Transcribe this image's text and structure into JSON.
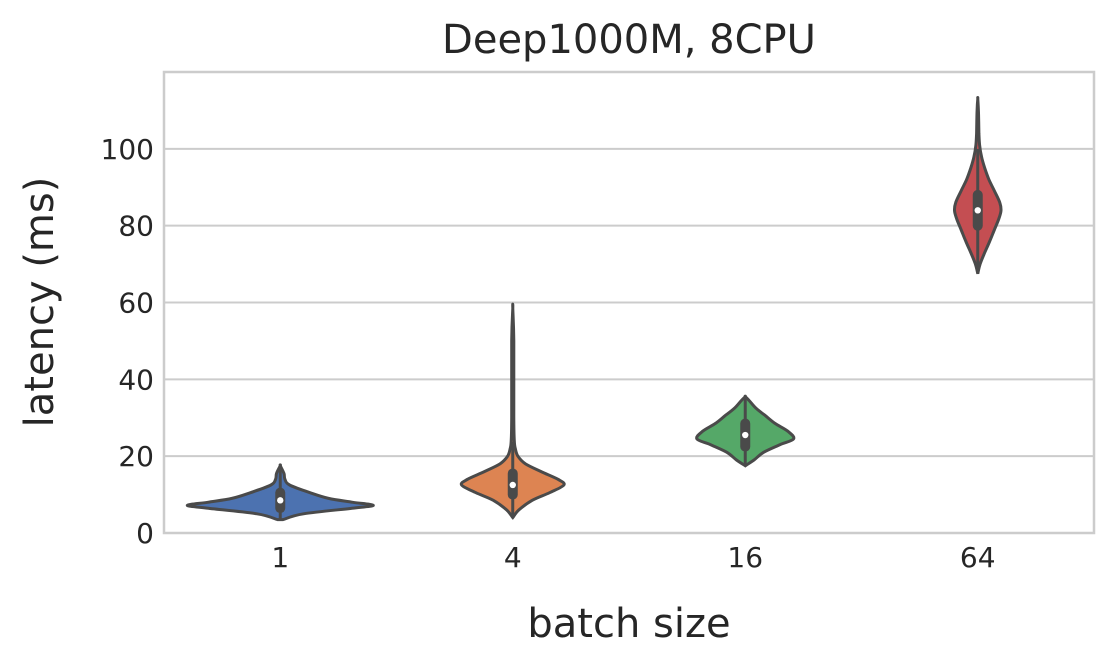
{
  "chart_data": {
    "type": "violin",
    "title": "Deep1000M, 8CPU",
    "xlabel": "batch size",
    "ylabel": "latency (ms)",
    "categories": [
      "1",
      "4",
      "16",
      "64"
    ],
    "ylim": [
      0,
      120
    ],
    "yticks": [
      0,
      20,
      40,
      60,
      80,
      100
    ],
    "grid": "horizontal",
    "colors": [
      "#4c72b0",
      "#dd8452",
      "#55a868",
      "#c44e52"
    ],
    "series": [
      {
        "category": "1",
        "min": 3.5,
        "q1": 6.5,
        "median": 8.5,
        "q3": 10.5,
        "max": 17.5,
        "width": 1.0,
        "profile": [
          [
            3.5,
            0.03
          ],
          [
            5,
            0.25
          ],
          [
            6.5,
            0.8
          ],
          [
            7.2,
            1.0
          ],
          [
            8,
            0.78
          ],
          [
            9,
            0.52
          ],
          [
            10.5,
            0.32
          ],
          [
            12.5,
            0.1
          ],
          [
            14,
            0.05
          ],
          [
            15.5,
            0.04
          ],
          [
            17.5,
            0.0
          ]
        ]
      },
      {
        "category": "4",
        "min": 4,
        "q1": 10,
        "median": 12.5,
        "q3": 15.5,
        "max": 58.5,
        "width": 0.55,
        "profile": [
          [
            4,
            0.0
          ],
          [
            6,
            0.12
          ],
          [
            8.5,
            0.38
          ],
          [
            10.5,
            0.72
          ],
          [
            12.5,
            1.0
          ],
          [
            14,
            0.88
          ],
          [
            16,
            0.55
          ],
          [
            18,
            0.25
          ],
          [
            20,
            0.1
          ],
          [
            22,
            0.05
          ],
          [
            24,
            0.03
          ],
          [
            30,
            0.02
          ],
          [
            50,
            0.02
          ],
          [
            58.5,
            0.0
          ]
        ]
      },
      {
        "category": "16",
        "min": 17.5,
        "q1": 22.5,
        "median": 25.5,
        "q3": 28.5,
        "max": 35.5,
        "width": 0.52,
        "profile": [
          [
            17.5,
            0.0
          ],
          [
            19,
            0.18
          ],
          [
            21,
            0.38
          ],
          [
            23,
            0.72
          ],
          [
            24.5,
            1.0
          ],
          [
            26.5,
            0.88
          ],
          [
            28.5,
            0.62
          ],
          [
            30.5,
            0.42
          ],
          [
            32.5,
            0.22
          ],
          [
            34.5,
            0.08
          ],
          [
            35.5,
            0.0
          ]
        ]
      },
      {
        "category": "64",
        "min": 67.5,
        "q1": 80,
        "median": 84,
        "q3": 88,
        "max": 113,
        "width": 0.25,
        "profile": [
          [
            67.5,
            0.0
          ],
          [
            70,
            0.1
          ],
          [
            73,
            0.3
          ],
          [
            76,
            0.52
          ],
          [
            79,
            0.72
          ],
          [
            82,
            0.92
          ],
          [
            84,
            1.0
          ],
          [
            86,
            0.95
          ],
          [
            89,
            0.72
          ],
          [
            92,
            0.48
          ],
          [
            95,
            0.3
          ],
          [
            98,
            0.16
          ],
          [
            101,
            0.08
          ],
          [
            104,
            0.05
          ],
          [
            107,
            0.04
          ],
          [
            110,
            0.03
          ],
          [
            113,
            0.0
          ]
        ]
      }
    ]
  }
}
